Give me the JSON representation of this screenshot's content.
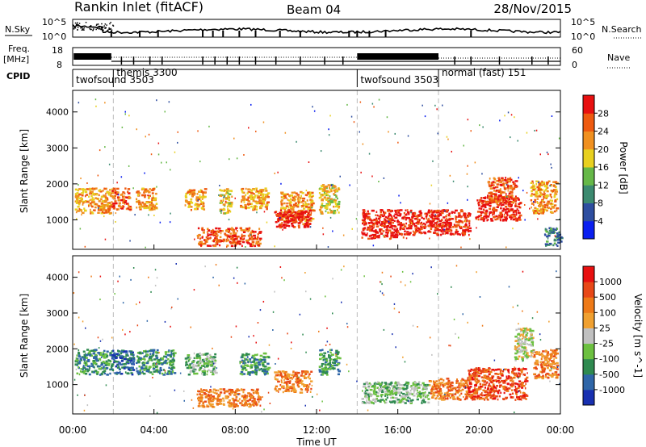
{
  "header": {
    "station": "Rankin Inlet (fitACF)",
    "beam": "Beam 04",
    "date": "28/Nov/2015"
  },
  "top_panels": {
    "nsky_label": "N.Sky",
    "nsearch_label": "N.Search",
    "nsky_tick_top": "10^5",
    "nsky_tick_bottom": "10^0",
    "freq_label": "Freq.",
    "freq_unit": "[MHz]",
    "freq_ticks": [
      "18",
      "8"
    ],
    "nave_label": "Nave",
    "nave_ticks": [
      "60",
      "0"
    ],
    "cpid_label": "CPID",
    "cpid_modes": [
      {
        "name": "twofsound 3503",
        "start_h": 0
      },
      {
        "name": "themis 3300",
        "start_h": 2
      },
      {
        "name": "twofsound 3503",
        "start_h": 14
      },
      {
        "name": "normal (fast) 151",
        "start_h": 18
      }
    ]
  },
  "chart_data": [
    {
      "type": "heatmap",
      "title": "",
      "xlabel": "",
      "ylabel": "Slant Range [km]",
      "xlim_hours": [
        0,
        24
      ],
      "ylim": [
        180,
        4600
      ],
      "yticks": [
        1000,
        2000,
        3000,
        4000
      ],
      "colorbar": {
        "label": "Power [dB]",
        "ticks": [
          "4",
          "8",
          "12",
          "16",
          "20",
          "24",
          "28"
        ],
        "colors": [
          "#0a1ff0",
          "#2e4ea0",
          "#3c8a70",
          "#66b848",
          "#e8d020",
          "#f09020",
          "#ee5a10",
          "#e81010"
        ]
      },
      "echo_regions": [
        {
          "x": [
            0.1,
            1.9
          ],
          "y": [
            1200,
            1900
          ],
          "level": 5
        },
        {
          "x": [
            1.9,
            2.8
          ],
          "y": [
            1300,
            1900
          ],
          "level": 6
        },
        {
          "x": [
            3.1,
            4.1
          ],
          "y": [
            1300,
            1900
          ],
          "level": 5
        },
        {
          "x": [
            5.5,
            6.5
          ],
          "y": [
            1300,
            1900
          ],
          "level": 5
        },
        {
          "x": [
            7.2,
            7.8
          ],
          "y": [
            1200,
            1900
          ],
          "level": 4
        },
        {
          "x": [
            8.2,
            9.6
          ],
          "y": [
            1300,
            1900
          ],
          "level": 5
        },
        {
          "x": [
            10.2,
            11.8
          ],
          "y": [
            1000,
            1800
          ],
          "level": 5
        },
        {
          "x": [
            6.1,
            9.2
          ],
          "y": [
            300,
            800
          ],
          "level": 6
        },
        {
          "x": [
            9.9,
            11.7
          ],
          "y": [
            800,
            1300
          ],
          "level": 7
        },
        {
          "x": [
            12.1,
            13.1
          ],
          "y": [
            1200,
            2000
          ],
          "level": 4
        },
        {
          "x": [
            14.2,
            16.3
          ],
          "y": [
            500,
            1300
          ],
          "level": 7
        },
        {
          "x": [
            16.3,
            19.5
          ],
          "y": [
            600,
            1300
          ],
          "level": 7
        },
        {
          "x": [
            19.8,
            22.0
          ],
          "y": [
            1000,
            1700
          ],
          "level": 7
        },
        {
          "x": [
            20.4,
            21.8
          ],
          "y": [
            1500,
            2200
          ],
          "level": 6
        },
        {
          "x": [
            22.5,
            23.8
          ],
          "y": [
            1200,
            2100
          ],
          "level": 5
        },
        {
          "x": [
            23.2,
            24.0
          ],
          "y": [
            300,
            800
          ],
          "level": 2
        }
      ]
    },
    {
      "type": "heatmap",
      "title": "",
      "xlabel": "Time UT",
      "ylabel": "Slant Range [km]",
      "xlim_hours": [
        0,
        24
      ],
      "ylim": [
        180,
        4600
      ],
      "yticks": [
        1000,
        2000,
        3000,
        4000
      ],
      "xticks": [
        "00:00",
        "04:00",
        "08:00",
        "12:00",
        "16:00",
        "20:00",
        "00:00"
      ],
      "colorbar": {
        "label": "Velocity [m s^-1]",
        "ticks": [
          "1000",
          "500",
          "100",
          "25",
          "-25",
          "-100",
          "-500",
          "-1000"
        ],
        "colors": [
          "#1830b0",
          "#2f66a8",
          "#2f8a50",
          "#6cc040",
          "#c0c0c0",
          "#f0a030",
          "#ee7a18",
          "#e84818",
          "#e81010"
        ]
      },
      "echo_regions": [
        {
          "x": [
            0.1,
            1.9
          ],
          "y": [
            1300,
            2000
          ],
          "level": 2
        },
        {
          "x": [
            1.9,
            3.0
          ],
          "y": [
            1300,
            2000
          ],
          "level": 1
        },
        {
          "x": [
            3.1,
            5.0
          ],
          "y": [
            1300,
            2000
          ],
          "level": 2
        },
        {
          "x": [
            5.5,
            7.0
          ],
          "y": [
            1300,
            1900
          ],
          "level": 3
        },
        {
          "x": [
            6.1,
            9.2
          ],
          "y": [
            400,
            900
          ],
          "level": 6
        },
        {
          "x": [
            8.2,
            9.6
          ],
          "y": [
            1300,
            1900
          ],
          "level": 2
        },
        {
          "x": [
            9.9,
            11.7
          ],
          "y": [
            800,
            1400
          ],
          "level": 6
        },
        {
          "x": [
            12.1,
            13.1
          ],
          "y": [
            1300,
            2000
          ],
          "level": 2
        },
        {
          "x": [
            14.2,
            17.5
          ],
          "y": [
            500,
            1100
          ],
          "level": 3
        },
        {
          "x": [
            17.5,
            19.4
          ],
          "y": [
            600,
            1200
          ],
          "level": 6
        },
        {
          "x": [
            19.4,
            22.3
          ],
          "y": [
            600,
            1500
          ],
          "level": 7
        },
        {
          "x": [
            22.6,
            23.8
          ],
          "y": [
            1200,
            2000
          ],
          "level": 6
        },
        {
          "x": [
            21.7,
            22.6
          ],
          "y": [
            1700,
            2600
          ],
          "level": 4
        }
      ]
    }
  ]
}
